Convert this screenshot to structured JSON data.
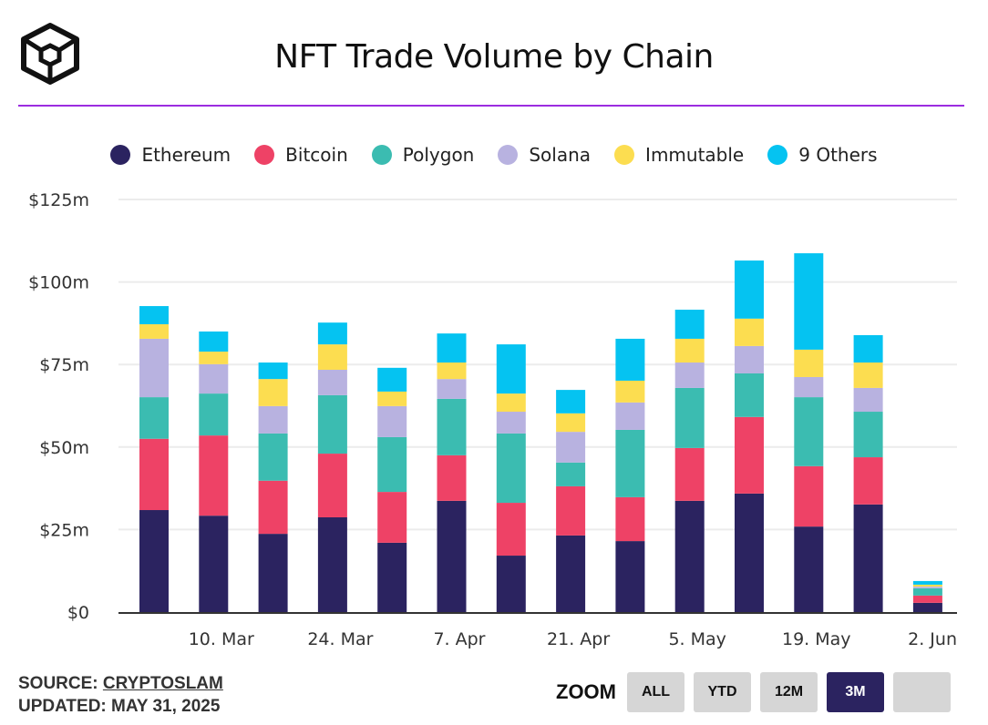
{
  "header": {
    "title": "NFT Trade Volume by Chain"
  },
  "footer": {
    "source_prefix": "SOURCE: ",
    "source_link": "CRYPTOSLAM",
    "updated": "UPDATED: MAY 31, 2025"
  },
  "zoom": {
    "label": "ZOOM",
    "buttons": [
      "ALL",
      "YTD",
      "12M",
      "3M",
      ""
    ],
    "active": "3M"
  },
  "chart_data": {
    "type": "bar",
    "stacked": true,
    "title": "NFT Trade Volume by Chain",
    "xlabel": "",
    "ylabel": "",
    "ylim": [
      0,
      125
    ],
    "y_ticks": [
      {
        "value": 0,
        "label": "$0"
      },
      {
        "value": 25,
        "label": "$25m"
      },
      {
        "value": 50,
        "label": "$50m"
      },
      {
        "value": 75,
        "label": "$75m"
      },
      {
        "value": 100,
        "label": "$100m"
      },
      {
        "value": 125,
        "label": "$125m"
      }
    ],
    "x_ticks": [
      {
        "week": 1.13,
        "label": "10. Mar"
      },
      {
        "week": 3.13,
        "label": "24. Mar"
      },
      {
        "week": 5.13,
        "label": "7. Apr"
      },
      {
        "week": 7.13,
        "label": "21. Apr"
      },
      {
        "week": 9.13,
        "label": "5. May"
      },
      {
        "week": 11.13,
        "label": "19. May"
      },
      {
        "week": 13.13,
        "label": "2. Jun"
      }
    ],
    "grid": true,
    "legend_position": "top-center",
    "series": [
      {
        "name": "Ethereum",
        "color": "#2b2360",
        "values": [
          30.9,
          29.2,
          23.7,
          28.7,
          21.0,
          33.7,
          17.1,
          23.2,
          21.5,
          33.7,
          35.9,
          25.9,
          32.6,
          2.8
        ]
      },
      {
        "name": "Bitcoin",
        "color": "#ee4266",
        "values": [
          21.6,
          24.3,
          16.1,
          19.3,
          15.4,
          13.8,
          16.0,
          14.9,
          13.3,
          16.0,
          23.2,
          18.3,
          14.3,
          2.2
        ]
      },
      {
        "name": "Polygon",
        "color": "#3bbcb1",
        "values": [
          12.6,
          12.7,
          14.3,
          17.7,
          16.6,
          17.1,
          21.0,
          7.2,
          20.4,
          18.2,
          13.2,
          20.9,
          13.8,
          2.2
        ]
      },
      {
        "name": "Solana",
        "color": "#b8b2e0",
        "values": [
          17.7,
          8.9,
          8.3,
          7.7,
          9.4,
          6.0,
          6.6,
          9.3,
          8.3,
          7.7,
          8.3,
          6.1,
          7.2,
          0.5
        ]
      },
      {
        "name": "Immutable",
        "color": "#fcdd50",
        "values": [
          4.4,
          3.8,
          8.2,
          7.7,
          4.4,
          5.0,
          5.5,
          5.6,
          6.6,
          7.2,
          8.3,
          8.3,
          7.7,
          0.6
        ]
      },
      {
        "name": "9 Others",
        "color": "#05c3f1",
        "values": [
          5.5,
          6.1,
          5.0,
          6.6,
          7.2,
          8.8,
          14.9,
          7.1,
          12.7,
          8.8,
          17.6,
          29.2,
          8.3,
          1.1
        ]
      }
    ]
  }
}
